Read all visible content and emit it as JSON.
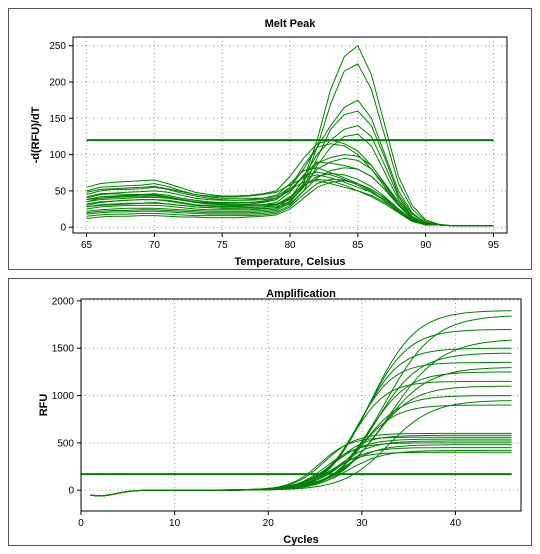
{
  "chart_data": [
    {
      "id": "melt",
      "type": "line",
      "title": "Melt Peak",
      "xlabel": "Temperature, Celsius",
      "ylabel": "-d(RFU)/dT",
      "xlim": [
        64,
        96
      ],
      "ylim": [
        -8,
        262
      ],
      "xticks": [
        65,
        70,
        75,
        80,
        85,
        90,
        95
      ],
      "yticks": [
        0,
        50,
        100,
        150,
        200,
        250
      ],
      "grid": true,
      "line_color": "#008000",
      "threshold": 120,
      "x": [
        65,
        66,
        67,
        68,
        69,
        70,
        71,
        72,
        73,
        74,
        75,
        76,
        77,
        78,
        79,
        80,
        81,
        82,
        83,
        84,
        85,
        86,
        87,
        88,
        89,
        90,
        91,
        92,
        93,
        94,
        95
      ],
      "series": [
        {
          "values": [
            40,
            45,
            46,
            45,
            45,
            45,
            42,
            38,
            35,
            33,
            32,
            31,
            31,
            31,
            32,
            40,
            65,
            120,
            190,
            235,
            250,
            210,
            140,
            70,
            30,
            10,
            4,
            2,
            2,
            2,
            2
          ]
        },
        {
          "values": [
            35,
            40,
            42,
            43,
            44,
            44,
            42,
            38,
            35,
            33,
            31,
            30,
            30,
            30,
            31,
            38,
            60,
            110,
            170,
            215,
            225,
            190,
            125,
            60,
            25,
            8,
            3,
            2,
            2,
            2,
            2
          ]
        },
        {
          "values": [
            50,
            55,
            56,
            57,
            58,
            60,
            56,
            50,
            45,
            42,
            40,
            40,
            40,
            40,
            42,
            55,
            80,
            110,
            140,
            165,
            175,
            150,
            100,
            50,
            20,
            6,
            3,
            2,
            2,
            2,
            2
          ]
        },
        {
          "values": [
            30,
            34,
            36,
            37,
            38,
            38,
            36,
            33,
            30,
            29,
            28,
            28,
            28,
            28,
            29,
            35,
            55,
            95,
            135,
            155,
            160,
            140,
            95,
            45,
            18,
            6,
            3,
            2,
            2,
            2,
            2
          ]
        },
        {
          "values": [
            45,
            50,
            52,
            52,
            53,
            55,
            52,
            47,
            43,
            40,
            38,
            37,
            37,
            38,
            40,
            50,
            70,
            100,
            120,
            135,
            140,
            125,
            85,
            42,
            15,
            5,
            3,
            2,
            2,
            2,
            2
          ]
        },
        {
          "values": [
            28,
            30,
            31,
            32,
            33,
            33,
            32,
            30,
            28,
            27,
            26,
            26,
            26,
            26,
            27,
            32,
            50,
            85,
            110,
            125,
            128,
            112,
            75,
            38,
            14,
            5,
            3,
            2,
            2,
            2,
            2
          ]
        },
        {
          "values": [
            38,
            42,
            43,
            44,
            45,
            46,
            44,
            40,
            37,
            35,
            34,
            34,
            34,
            35,
            38,
            55,
            85,
            110,
            115,
            112,
            100,
            80,
            55,
            30,
            12,
            4,
            3,
            2,
            2,
            2,
            2
          ]
        },
        {
          "values": [
            55,
            60,
            62,
            63,
            64,
            65,
            60,
            54,
            48,
            45,
            43,
            43,
            44,
            46,
            50,
            70,
            95,
            115,
            120,
            115,
            105,
            85,
            60,
            35,
            14,
            5,
            3,
            2,
            2,
            2,
            2
          ]
        },
        {
          "values": [
            25,
            28,
            29,
            30,
            30,
            30,
            29,
            27,
            25,
            24,
            24,
            24,
            24,
            25,
            27,
            40,
            65,
            88,
            96,
            100,
            98,
            85,
            60,
            32,
            12,
            4,
            3,
            2,
            2,
            2,
            2
          ]
        },
        {
          "values": [
            32,
            35,
            36,
            37,
            38,
            38,
            37,
            34,
            31,
            30,
            29,
            29,
            30,
            31,
            34,
            48,
            72,
            90,
            88,
            85,
            80,
            70,
            52,
            30,
            12,
            4,
            3,
            2,
            2,
            2,
            2
          ]
        },
        {
          "values": [
            20,
            22,
            23,
            23,
            24,
            24,
            23,
            22,
            21,
            20,
            20,
            20,
            20,
            21,
            23,
            34,
            58,
            80,
            90,
            95,
            92,
            80,
            58,
            32,
            12,
            4,
            3,
            2,
            2,
            2,
            2
          ]
        },
        {
          "values": [
            42,
            46,
            47,
            48,
            49,
            50,
            48,
            44,
            40,
            38,
            37,
            37,
            38,
            40,
            44,
            60,
            78,
            82,
            75,
            68,
            60,
            52,
            40,
            25,
            10,
            4,
            3,
            2,
            2,
            2,
            2
          ]
        },
        {
          "values": [
            18,
            20,
            21,
            21,
            22,
            22,
            21,
            20,
            19,
            18,
            18,
            18,
            18,
            19,
            21,
            30,
            50,
            68,
            78,
            82,
            80,
            70,
            52,
            30,
            11,
            4,
            3,
            2,
            2,
            2,
            2
          ]
        },
        {
          "values": [
            35,
            38,
            39,
            40,
            41,
            41,
            40,
            37,
            34,
            32,
            31,
            31,
            32,
            34,
            38,
            52,
            70,
            76,
            72,
            66,
            58,
            48,
            36,
            22,
            9,
            4,
            3,
            2,
            2,
            2,
            2
          ]
        },
        {
          "values": [
            22,
            24,
            25,
            26,
            26,
            26,
            25,
            24,
            23,
            22,
            22,
            22,
            22,
            23,
            25,
            36,
            56,
            70,
            74,
            72,
            66,
            56,
            42,
            25,
            10,
            4,
            3,
            2,
            2,
            2,
            2
          ]
        },
        {
          "values": [
            48,
            52,
            53,
            54,
            55,
            56,
            53,
            49,
            45,
            43,
            42,
            42,
            43,
            45,
            48,
            58,
            68,
            72,
            68,
            62,
            55,
            48,
            38,
            24,
            10,
            4,
            3,
            2,
            2,
            2,
            2
          ]
        },
        {
          "values": [
            15,
            17,
            18,
            18,
            19,
            19,
            18,
            17,
            16,
            16,
            16,
            16,
            16,
            17,
            19,
            28,
            45,
            60,
            66,
            65,
            60,
            52,
            40,
            24,
            10,
            4,
            3,
            2,
            2,
            2,
            2
          ]
        },
        {
          "values": [
            28,
            31,
            32,
            33,
            33,
            34,
            32,
            30,
            28,
            27,
            26,
            26,
            27,
            28,
            31,
            42,
            58,
            66,
            64,
            58,
            50,
            42,
            32,
            20,
            8,
            4,
            3,
            2,
            2,
            2,
            2
          ]
        },
        {
          "values": [
            12,
            14,
            15,
            15,
            16,
            16,
            15,
            14,
            14,
            13,
            13,
            13,
            14,
            15,
            17,
            25,
            40,
            55,
            62,
            64,
            60,
            50,
            36,
            20,
            8,
            3,
            3,
            2,
            2,
            2,
            2
          ]
        },
        {
          "values": [
            38,
            40,
            41,
            42,
            42,
            43,
            41,
            38,
            35,
            34,
            33,
            33,
            34,
            36,
            40,
            52,
            62,
            64,
            60,
            55,
            50,
            44,
            34,
            22,
            9,
            4,
            3,
            2,
            2,
            2,
            2
          ]
        }
      ]
    },
    {
      "id": "amp",
      "type": "line",
      "title": "Amplification",
      "xlabel": "Cycles",
      "ylabel": "RFU",
      "xlim": [
        0,
        47
      ],
      "ylim": [
        -220,
        2020
      ],
      "xticks": [
        0,
        10,
        20,
        30,
        40
      ],
      "yticks": [
        0,
        500,
        1000,
        1500,
        2000
      ],
      "grid": true,
      "line_color": "#008000",
      "threshold": 170,
      "series": [
        {
          "plateau": 1900,
          "mid": 31.0,
          "k": 0.42
        },
        {
          "plateau": 1850,
          "mid": 32.5,
          "k": 0.38
        },
        {
          "plateau": 1700,
          "mid": 30.5,
          "k": 0.45
        },
        {
          "plateau": 1600,
          "mid": 33.0,
          "k": 0.36
        },
        {
          "plateau": 1500,
          "mid": 30.0,
          "k": 0.5
        },
        {
          "plateau": 1450,
          "mid": 31.5,
          "k": 0.44
        },
        {
          "plateau": 1350,
          "mid": 29.5,
          "k": 0.52
        },
        {
          "plateau": 1300,
          "mid": 32.0,
          "k": 0.4
        },
        {
          "plateau": 1250,
          "mid": 30.8,
          "k": 0.48
        },
        {
          "plateau": 1150,
          "mid": 29.0,
          "k": 0.55
        },
        {
          "plateau": 1100,
          "mid": 31.2,
          "k": 0.46
        },
        {
          "plateau": 1000,
          "mid": 30.2,
          "k": 0.5
        },
        {
          "plateau": 950,
          "mid": 32.8,
          "k": 0.42
        },
        {
          "plateau": 900,
          "mid": 29.8,
          "k": 0.52
        },
        {
          "plateau": 600,
          "mid": 26.0,
          "k": 0.6
        },
        {
          "plateau": 580,
          "mid": 27.0,
          "k": 0.58
        },
        {
          "plateau": 560,
          "mid": 25.5,
          "k": 0.62
        },
        {
          "plateau": 540,
          "mid": 26.8,
          "k": 0.55
        },
        {
          "plateau": 520,
          "mid": 27.5,
          "k": 0.56
        },
        {
          "plateau": 500,
          "mid": 26.2,
          "k": 0.6
        },
        {
          "plateau": 480,
          "mid": 28.0,
          "k": 0.54
        },
        {
          "plateau": 450,
          "mid": 27.2,
          "k": 0.58
        },
        {
          "plateau": 420,
          "mid": 28.5,
          "k": 0.52
        },
        {
          "plateau": 400,
          "mid": 26.5,
          "k": 0.6
        }
      ],
      "cycles_range": [
        1,
        46
      ],
      "baseline_dip": -60
    }
  ]
}
